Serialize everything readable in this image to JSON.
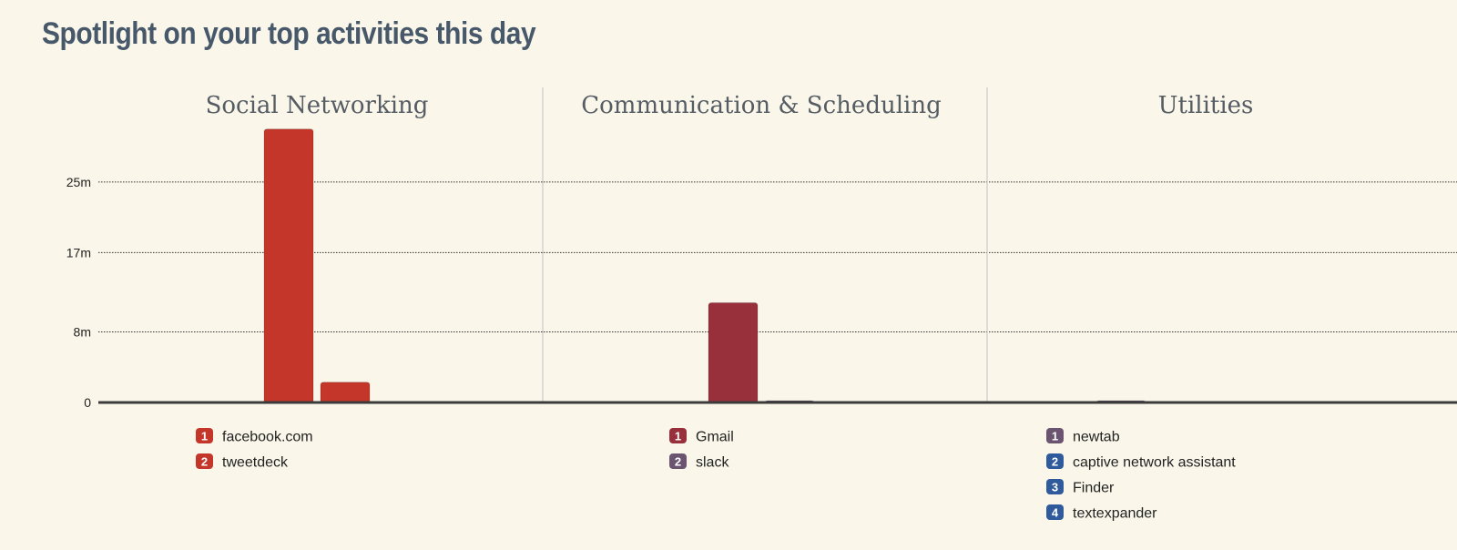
{
  "page": {
    "title": "Spotlight on your top activities this day"
  },
  "chart_data": {
    "type": "bar",
    "y_ticks": [
      0,
      8,
      17,
      25
    ],
    "y_tick_labels": [
      "0",
      "8m",
      "17m",
      "25m"
    ],
    "ylim": [
      0,
      32
    ],
    "y_unit": "minutes",
    "grid": true,
    "legend_position": "bottom",
    "panels": [
      {
        "title": "Social Networking",
        "bars": [
          {
            "rank": "1",
            "name": "facebook.com",
            "value": 31,
            "color": "#c4352a"
          },
          {
            "rank": "2",
            "name": "tweetdeck",
            "value": 2.3,
            "color": "#c4352a"
          }
        ]
      },
      {
        "title": "Communication & Scheduling",
        "bars": [
          {
            "rank": "1",
            "name": "Gmail",
            "value": 11.3,
            "color": "#97303b"
          },
          {
            "rank": "2",
            "name": "slack",
            "value": 0.2,
            "color": "#6b5470"
          }
        ]
      },
      {
        "title": "Utilities",
        "bars": [
          {
            "rank": "1",
            "name": "newtab",
            "value": 0.2,
            "color": "#6b5470"
          },
          {
            "rank": "2",
            "name": "captive network assistant",
            "value": 0,
            "color": "#2f5a9c"
          },
          {
            "rank": "3",
            "name": "Finder",
            "value": 0,
            "color": "#2f5a9c"
          },
          {
            "rank": "4",
            "name": "textexpander",
            "value": 0,
            "color": "#2f5a9c"
          }
        ]
      }
    ]
  }
}
